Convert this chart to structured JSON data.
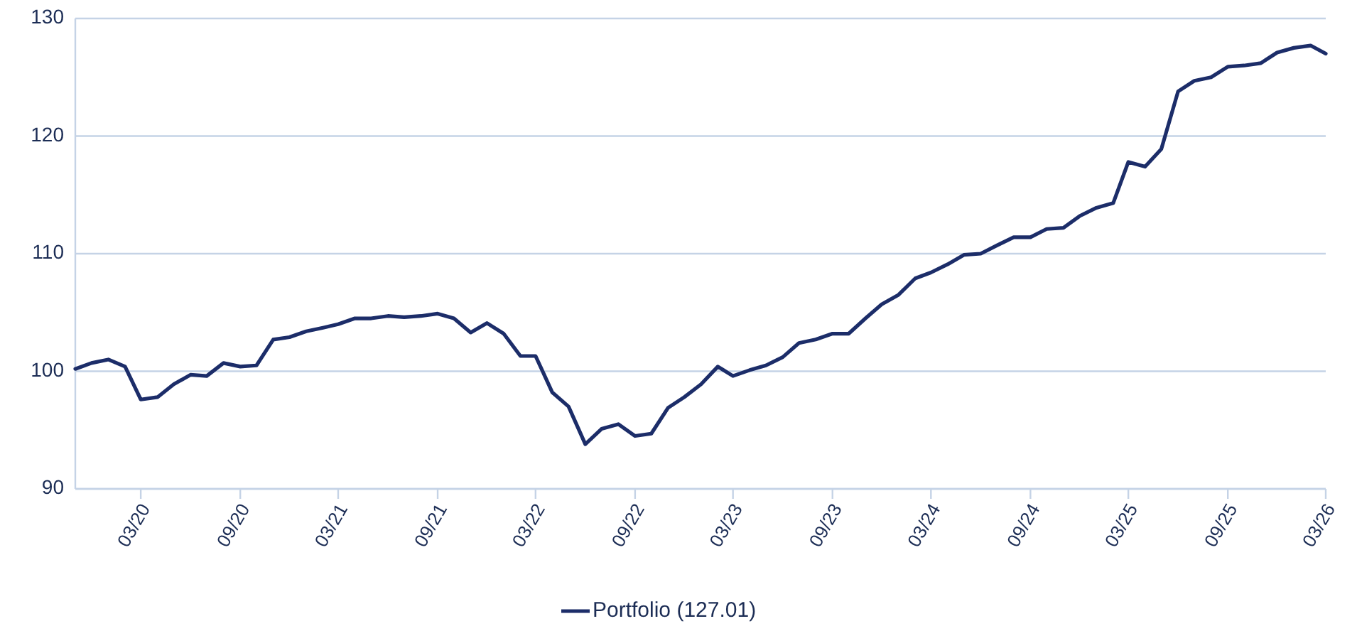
{
  "chart_data": {
    "type": "line",
    "x": [
      "2019-11",
      "2019-12",
      "2020-01",
      "2020-02",
      "2020-03",
      "2020-04",
      "2020-05",
      "2020-06",
      "2020-07",
      "2020-08",
      "2020-09",
      "2020-10",
      "2020-11",
      "2020-12",
      "2021-01",
      "2021-02",
      "2021-03",
      "2021-04",
      "2021-05",
      "2021-06",
      "2021-07",
      "2021-08",
      "2021-09",
      "2021-10",
      "2021-11",
      "2021-12",
      "2022-01",
      "2022-02",
      "2022-03",
      "2022-04",
      "2022-05",
      "2022-06",
      "2022-07",
      "2022-08",
      "2022-09",
      "2022-10",
      "2022-11",
      "2022-12",
      "2023-01",
      "2023-02",
      "2023-03",
      "2023-04",
      "2023-05",
      "2023-06",
      "2023-07",
      "2023-08",
      "2023-09",
      "2023-10",
      "2023-11",
      "2023-12",
      "2024-01",
      "2024-02",
      "2024-03",
      "2024-04",
      "2024-05",
      "2024-06",
      "2024-07",
      "2024-08",
      "2024-09",
      "2024-10",
      "2024-11",
      "2024-12",
      "2025-01",
      "2025-02",
      "2025-03",
      "2025-04",
      "2025-05",
      "2025-06",
      "2025-07",
      "2025-08",
      "2025-09",
      "2025-10",
      "2025-11",
      "2025-12",
      "2026-01",
      "2026-02",
      "2026-03"
    ],
    "series": [
      {
        "name": "Portfolio (127.01)",
        "color": "#1c2d69",
        "values": [
          100.2,
          100.7,
          101.0,
          100.4,
          97.6,
          97.8,
          98.9,
          99.7,
          99.6,
          100.7,
          100.4,
          100.5,
          102.7,
          102.9,
          103.4,
          103.7,
          104.0,
          104.5,
          104.5,
          104.7,
          104.6,
          104.7,
          104.9,
          104.5,
          103.3,
          104.1,
          103.2,
          101.3,
          101.3,
          98.2,
          97.0,
          93.8,
          95.1,
          95.5,
          94.5,
          94.7,
          96.9,
          97.8,
          98.9,
          100.4,
          99.6,
          100.1,
          100.5,
          101.2,
          102.4,
          102.7,
          103.2,
          103.2,
          104.5,
          105.7,
          106.5,
          107.9,
          108.4,
          109.1,
          109.9,
          110.0,
          110.7,
          111.4,
          111.4,
          112.1,
          112.2,
          113.2,
          113.9,
          114.3,
          117.8,
          117.4,
          118.9,
          123.8,
          124.7,
          125.0,
          125.9,
          126.0,
          126.2,
          127.1,
          127.5,
          127.7,
          127.01
        ]
      }
    ],
    "xlim": [
      "2019-11",
      "2026-03"
    ],
    "xticks": [
      {
        "value": "2020-03",
        "label": "03/20"
      },
      {
        "value": "2020-09",
        "label": "09/20"
      },
      {
        "value": "2021-03",
        "label": "03/21"
      },
      {
        "value": "2021-09",
        "label": "09/21"
      },
      {
        "value": "2022-03",
        "label": "03/22"
      },
      {
        "value": "2022-09",
        "label": "09/22"
      },
      {
        "value": "2023-03",
        "label": "03/23"
      },
      {
        "value": "2023-09",
        "label": "09/23"
      },
      {
        "value": "2024-03",
        "label": "03/24"
      },
      {
        "value": "2024-09",
        "label": "09/24"
      },
      {
        "value": "2025-03",
        "label": "03/25"
      },
      {
        "value": "2025-09",
        "label": "09/25"
      },
      {
        "value": "2026-03",
        "label": "03/26"
      }
    ],
    "ylim": [
      90,
      130
    ],
    "yticks": [
      90,
      100,
      110,
      120,
      130
    ],
    "grid": "y",
    "legend": "bottom",
    "marker": "none",
    "line_style": "solid"
  }
}
